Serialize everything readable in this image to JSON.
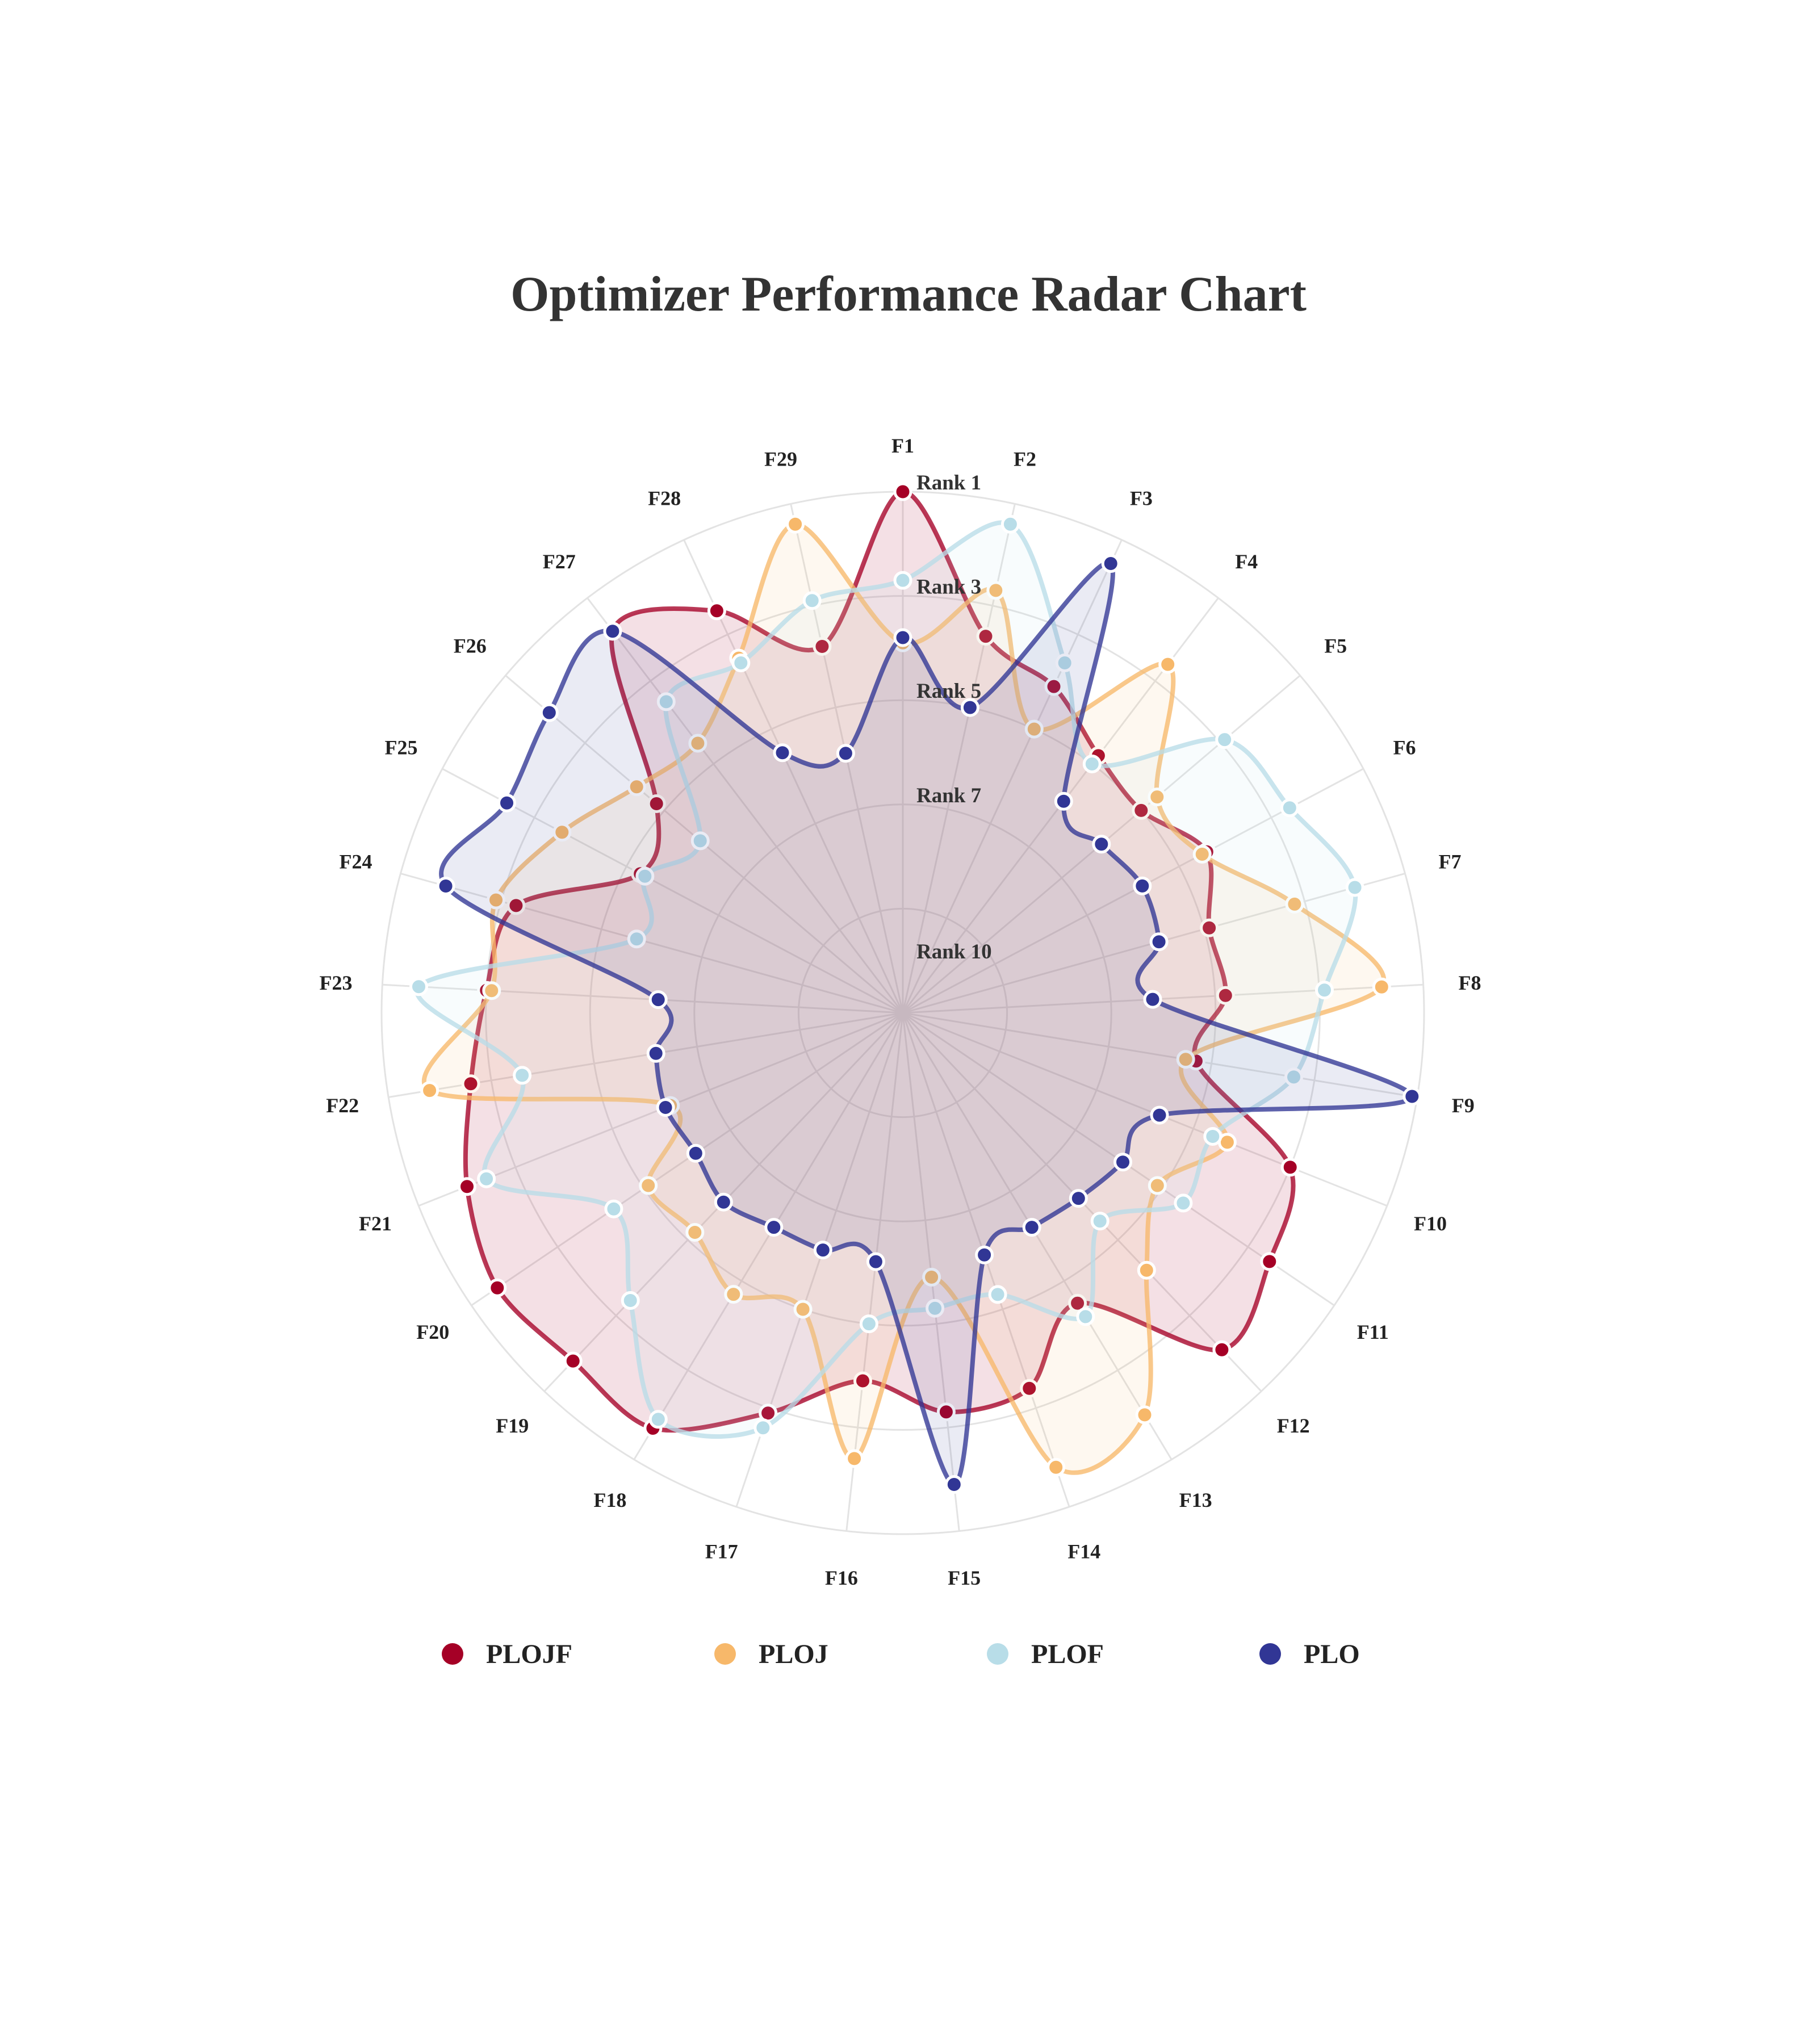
{
  "chart_data": {
    "type": "radar",
    "title": "Optimizer Performance Radar Chart",
    "axes": [
      "F1",
      "F2",
      "F3",
      "F4",
      "F5",
      "F6",
      "F7",
      "F8",
      "F9",
      "F10",
      "F11",
      "F12",
      "F13",
      "F14",
      "F15",
      "F16",
      "F17",
      "F18",
      "F19",
      "F20",
      "F21",
      "F22",
      "F23",
      "F24",
      "F25",
      "F26",
      "F27",
      "F28",
      "F29"
    ],
    "radial_scale": {
      "best_rank": 1,
      "worst_rank": 11,
      "grid": true
    },
    "rank_labels": [
      {
        "text": "Rank 1",
        "rank": 1
      },
      {
        "text": "Rank 3",
        "rank": 3
      },
      {
        "text": "Rank 5",
        "rank": 5
      },
      {
        "text": "Rank 7",
        "rank": 7
      },
      {
        "text": "Rank 10",
        "rank": 10
      }
    ],
    "legend_position": "bottom",
    "series": [
      {
        "name": "PLOJF",
        "color": "#a50026",
        "fill_opacity": 0.12,
        "values": [
          1.0,
          3.6,
          4.1,
          4.8,
          5.0,
          4.4,
          4.9,
          4.8,
          5.3,
          3.0,
          2.5,
          2.1,
          4.5,
          3.4,
          3.3,
          3.9,
          2.9,
          1.7,
          1.8,
          1.6,
          2.0,
          2.6,
          3.0,
          3.3,
          5.3,
          4.8,
          1.8,
          2.5,
          3.8
        ]
      },
      {
        "name": "PLOJ",
        "color": "#f7b86a",
        "fill_opacity": 0.1,
        "values": [
          3.9,
          2.7,
          5.0,
          2.6,
          4.6,
          4.5,
          3.2,
          1.8,
          5.5,
          4.3,
          5.1,
          4.2,
          2.0,
          1.8,
          5.9,
          2.4,
          5.0,
          4.7,
          5.2,
          5.1,
          6.2,
          1.8,
          3.1,
          2.9,
          3.6,
          4.3,
          4.5,
          3.5,
          1.4
        ]
      },
      {
        "name": "PLOF",
        "color": "#b8dde8",
        "fill_opacity": 0.1,
        "values": [
          2.7,
          1.4,
          3.6,
          5.0,
          2.9,
          2.6,
          2.0,
          2.9,
          3.4,
          4.6,
          4.5,
          5.5,
          4.2,
          5.3,
          5.3,
          5.0,
          2.6,
          1.9,
          3.4,
          4.3,
          2.4,
          3.6,
          1.7,
          5.7,
          5.4,
          5.9,
          3.5,
          3.6,
          2.9
        ]
      },
      {
        "name": "PLO",
        "color": "#313695",
        "fill_opacity": 0.1,
        "values": [
          3.8,
          5.0,
          1.5,
          5.9,
          6.0,
          5.8,
          5.9,
          6.2,
          1.1,
          5.7,
          5.9,
          6.1,
          6.2,
          6.1,
          1.9,
          6.2,
          6.2,
          6.2,
          6.0,
          6.2,
          6.1,
          6.2,
          6.3,
          1.9,
          2.4,
          2.1,
          1.8,
          5.5,
          5.9
        ]
      }
    ]
  }
}
